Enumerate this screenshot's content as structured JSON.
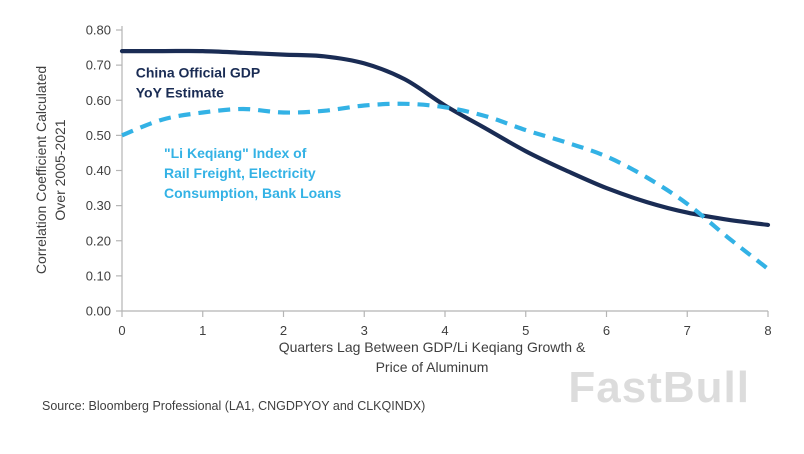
{
  "chart_data": {
    "type": "line",
    "x": [
      0,
      0.5,
      1,
      1.5,
      2,
      2.5,
      3,
      3.5,
      4,
      4.5,
      5,
      5.5,
      6,
      6.5,
      7,
      7.5,
      8
    ],
    "series": [
      {
        "name": "China Official GDP YoY Estimate",
        "color": "#1a2c54",
        "style": "solid",
        "values": [
          0.74,
          0.74,
          0.74,
          0.735,
          0.73,
          0.725,
          0.705,
          0.66,
          0.585,
          0.52,
          0.455,
          0.4,
          0.35,
          0.31,
          0.28,
          0.26,
          0.245
        ]
      },
      {
        "name": "\"Li Keqiang\" Index of Rail Freight, Electricity Consumption, Bank Loans",
        "color": "#33b2e5",
        "style": "dashed",
        "values": [
          0.5,
          0.545,
          0.565,
          0.575,
          0.565,
          0.57,
          0.585,
          0.59,
          0.58,
          0.555,
          0.515,
          0.48,
          0.44,
          0.38,
          0.305,
          0.21,
          0.12
        ]
      }
    ],
    "xlim": [
      0,
      8
    ],
    "ylim": [
      0,
      0.8
    ],
    "xticks": [
      0,
      1,
      2,
      3,
      4,
      5,
      6,
      7,
      8
    ],
    "xtick_labels": [
      "0",
      "1",
      "2",
      "3",
      "4",
      "5",
      "6",
      "7",
      "8"
    ],
    "yticks": [
      0,
      0.1,
      0.2,
      0.3,
      0.4,
      0.5,
      0.6,
      0.7,
      0.8
    ],
    "ytick_labels": [
      "0.00",
      "0.10",
      "0.20",
      "0.30",
      "0.40",
      "0.50",
      "0.60",
      "0.70",
      "0.80"
    ],
    "xlabel_lines": [
      "Quarters Lag Between GDP/Li Keqiang Growth &",
      "Price of Aluminum"
    ],
    "ylabel_lines": [
      "Correlation Coefficient Calculated",
      "Over 2005-2021"
    ],
    "grid": false,
    "legend_position": "inline-annotations",
    "annotations": [
      {
        "lines": [
          "China Official GDP",
          "YoY Estimate"
        ],
        "color": "#1a2c54",
        "x": 0.17,
        "y": 0.665
      },
      {
        "lines": [
          "\"Li Keqiang\" Index of",
          "Rail Freight, Electricity",
          "Consumption, Bank Loans"
        ],
        "color": "#33b2e5",
        "x": 0.52,
        "y": 0.435
      }
    ]
  },
  "source": "Source: Bloomberg Professional (LA1, CNGDPYOY and CLKQINDX)",
  "watermark": "FastBull"
}
